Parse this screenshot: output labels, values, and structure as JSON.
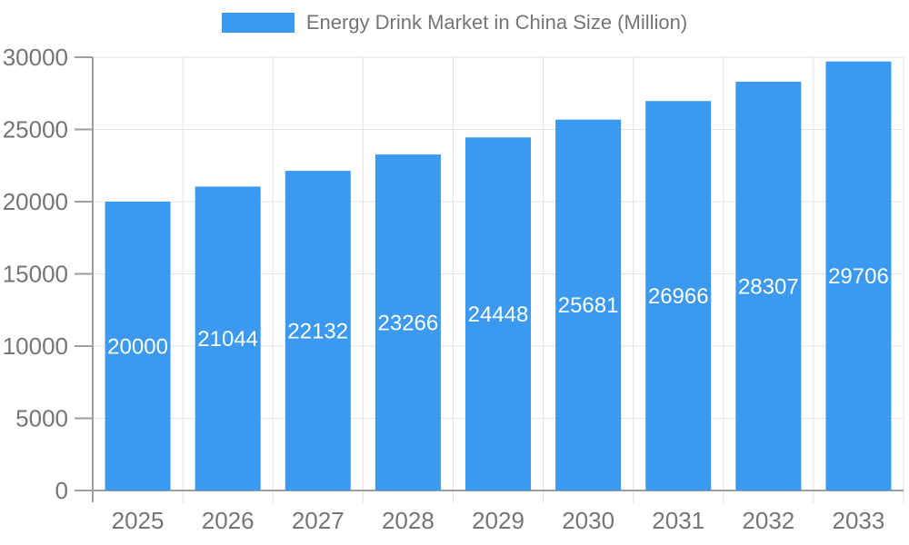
{
  "legend": {
    "label": "Energy Drink Market in China Size (Million)"
  },
  "chart_data": {
    "type": "bar",
    "title": "Energy Drink Market in China Size (Million)",
    "categories": [
      "2025",
      "2026",
      "2027",
      "2028",
      "2029",
      "2030",
      "2031",
      "2032",
      "2033"
    ],
    "values": [
      20000,
      21044,
      22132,
      23266,
      24448,
      25681,
      26966,
      28307,
      29706
    ],
    "value_labels_shown": true,
    "xlabel": "",
    "ylabel": "",
    "ylim": [
      0,
      30000
    ],
    "yticks": [
      0,
      5000,
      10000,
      15000,
      20000,
      25000,
      30000
    ],
    "grid": true,
    "legend_position": "top",
    "style": {
      "bar_color": "#3B99F0",
      "value_label_color": "#FFFFFF",
      "axis_text_color": "#757575",
      "axis_line_color": "#9E9E9E",
      "gridline_color": "#E4E4E4",
      "background": "#FFFFFF"
    }
  }
}
